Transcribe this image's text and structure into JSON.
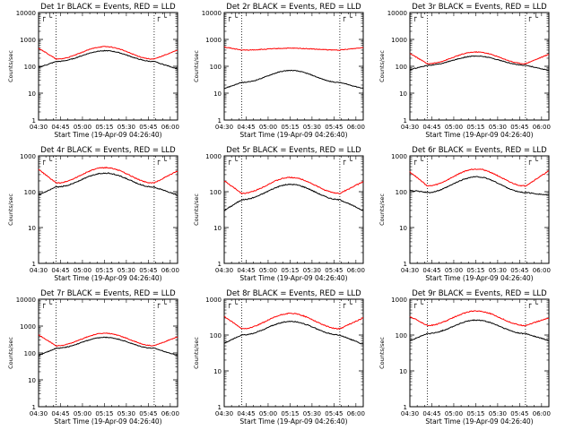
{
  "colors": {
    "events": "#000000",
    "lld": "#ff0000",
    "axis": "#000000",
    "background": "#ffffff"
  },
  "chart_data": [
    {
      "type": "line",
      "title": "Det 1r BLACK = Events, RED = LLD",
      "xlabel": "Start Time (19-Apr-09 04:26:40)",
      "ylabel": "Counts/sec",
      "yscale": "log",
      "ylim": [
        1,
        10000
      ],
      "xlim": [
        "04:30",
        "06:05"
      ],
      "xticks": [
        "04:30",
        "04:45",
        "05:00",
        "05:15",
        "05:30",
        "05:45",
        "06:00"
      ],
      "yticks": [
        "1",
        "10",
        "100",
        "1000",
        "10000"
      ],
      "vlines": [
        "04:42",
        "05:49"
      ],
      "corner_marks": "┌ └",
      "series": [
        {
          "name": "BLACK = Events",
          "color": "#000000",
          "base": 150,
          "peak": 380,
          "pre": 90,
          "post": 80
        },
        {
          "name": "RED = LLD",
          "color": "#ff0000",
          "base": 185,
          "peak": 540,
          "pre": 480,
          "post": 400
        }
      ]
    },
    {
      "type": "line",
      "title": "Det 2r BLACK = Events, RED = LLD",
      "xlabel": "Start Time (19-Apr-09 04:26:40)",
      "ylabel": "Counts/sec",
      "yscale": "log",
      "ylim": [
        1,
        10000
      ],
      "xlim": [
        "04:30",
        "06:05"
      ],
      "xticks": [
        "04:30",
        "04:45",
        "05:00",
        "05:15",
        "05:30",
        "05:45",
        "06:00"
      ],
      "yticks": [
        "1",
        "10",
        "100",
        "1000",
        "10000"
      ],
      "vlines": [
        "04:42",
        "05:49"
      ],
      "corner_marks": "┌ └",
      "series": [
        {
          "name": "BLACK = Events",
          "color": "#000000",
          "base": 25,
          "peak": 70,
          "pre": 15,
          "post": 15
        },
        {
          "name": "RED = LLD",
          "color": "#ff0000",
          "base": 400,
          "peak": 470,
          "pre": 520,
          "post": 500
        }
      ]
    },
    {
      "type": "line",
      "title": "Det 3r BLACK = Events, RED = LLD",
      "xlabel": "Start Time (19-Apr-09 04:26:40)",
      "ylabel": "Counts/sec",
      "yscale": "log",
      "ylim": [
        1,
        10000
      ],
      "xlim": [
        "04:30",
        "06:05"
      ],
      "xticks": [
        "04:30",
        "04:45",
        "05:00",
        "05:15",
        "05:30",
        "05:45",
        "06:00"
      ],
      "yticks": [
        "1",
        "10",
        "100",
        "1000",
        "10000"
      ],
      "vlines": [
        "04:42",
        "05:49"
      ],
      "corner_marks": "┌ └",
      "series": [
        {
          "name": "BLACK = Events",
          "color": "#000000",
          "base": 110,
          "peak": 240,
          "pre": 75,
          "post": 70
        },
        {
          "name": "RED = LLD",
          "color": "#ff0000",
          "base": 125,
          "peak": 340,
          "pre": 300,
          "post": 280
        }
      ]
    },
    {
      "type": "line",
      "title": "Det 4r BLACK = Events, RED = LLD",
      "xlabel": "Start Time (19-Apr-09 04:26:40)",
      "ylabel": "Counts/sec",
      "yscale": "log",
      "ylim": [
        1,
        1000
      ],
      "xlim": [
        "04:30",
        "06:05"
      ],
      "xticks": [
        "04:30",
        "04:45",
        "05:00",
        "05:15",
        "05:30",
        "05:45",
        "06:00"
      ],
      "yticks": [
        "1",
        "10",
        "100",
        "1000"
      ],
      "vlines": [
        "04:42",
        "05:49"
      ],
      "corner_marks": "┌ └",
      "series": [
        {
          "name": "BLACK = Events",
          "color": "#000000",
          "base": 135,
          "peak": 330,
          "pre": 80,
          "post": 80
        },
        {
          "name": "RED = LLD",
          "color": "#ff0000",
          "base": 175,
          "peak": 470,
          "pre": 420,
          "post": 380
        }
      ]
    },
    {
      "type": "line",
      "title": "Det 5r BLACK = Events, RED = LLD",
      "xlabel": "Start Time (19-Apr-09 04:26:40)",
      "ylabel": "Counts/sec",
      "yscale": "log",
      "ylim": [
        1,
        1000
      ],
      "xlim": [
        "04:30",
        "06:05"
      ],
      "xticks": [
        "04:30",
        "04:45",
        "05:00",
        "05:15",
        "05:30",
        "05:45",
        "06:00"
      ],
      "yticks": [
        "1",
        "10",
        "100",
        "1000"
      ],
      "vlines": [
        "04:42",
        "05:49"
      ],
      "corner_marks": "┌ └",
      "series": [
        {
          "name": "BLACK = Events",
          "color": "#000000",
          "base": 60,
          "peak": 160,
          "pre": 30,
          "post": 30
        },
        {
          "name": "RED = LLD",
          "color": "#ff0000",
          "base": 90,
          "peak": 250,
          "pre": 200,
          "post": 190
        }
      ]
    },
    {
      "type": "line",
      "title": "Det 6r BLACK = Events, RED = LLD",
      "xlabel": "Start Time (19-Apr-09 04:26:40)",
      "ylabel": "Counts/sec",
      "yscale": "log",
      "ylim": [
        1,
        1000
      ],
      "xlim": [
        "04:30",
        "06:05"
      ],
      "xticks": [
        "04:30",
        "04:45",
        "05:00",
        "05:15",
        "05:30",
        "05:45",
        "06:00"
      ],
      "yticks": [
        "1",
        "10",
        "100",
        "1000"
      ],
      "vlines": [
        "04:42",
        "05:49"
      ],
      "corner_marks": "┌ └",
      "series": [
        {
          "name": "BLACK = Events",
          "color": "#000000",
          "base": 95,
          "peak": 260,
          "pre": 110,
          "post": 80
        },
        {
          "name": "RED = LLD",
          "color": "#ff0000",
          "base": 145,
          "peak": 430,
          "pre": 360,
          "post": 380
        }
      ]
    },
    {
      "type": "line",
      "title": "Det 7r BLACK = Events, RED = LLD",
      "xlabel": "Start Time (19-Apr-09 04:26:40)",
      "ylabel": "Counts/sec",
      "yscale": "log",
      "ylim": [
        1,
        10000
      ],
      "xlim": [
        "04:30",
        "06:05"
      ],
      "xticks": [
        "04:30",
        "04:45",
        "05:00",
        "05:15",
        "05:30",
        "05:45",
        "06:00"
      ],
      "yticks": [
        "1",
        "10",
        "100",
        "1000",
        "10000"
      ],
      "vlines": [
        "04:42",
        "05:49"
      ],
      "corner_marks": "┌ └",
      "series": [
        {
          "name": "BLACK = Events",
          "color": "#000000",
          "base": 150,
          "peak": 380,
          "pre": 80,
          "post": 80
        },
        {
          "name": "RED = LLD",
          "color": "#ff0000",
          "base": 185,
          "peak": 540,
          "pre": 470,
          "post": 400
        }
      ]
    },
    {
      "type": "line",
      "title": "Det 8r BLACK = Events, RED = LLD",
      "xlabel": "Start Time (19-Apr-09 04:26:40)",
      "ylabel": "Counts/sec",
      "yscale": "log",
      "ylim": [
        1,
        1000
      ],
      "xlim": [
        "04:30",
        "06:05"
      ],
      "xticks": [
        "04:30",
        "04:45",
        "05:00",
        "05:15",
        "05:30",
        "05:45",
        "06:00"
      ],
      "yticks": [
        "1",
        "10",
        "100",
        "1000"
      ],
      "vlines": [
        "04:42",
        "05:49"
      ],
      "corner_marks": "┌ └",
      "series": [
        {
          "name": "BLACK = Events",
          "color": "#000000",
          "base": 100,
          "peak": 240,
          "pre": 60,
          "post": 55
        },
        {
          "name": "RED = LLD",
          "color": "#ff0000",
          "base": 150,
          "peak": 400,
          "pre": 330,
          "post": 300
        }
      ]
    },
    {
      "type": "line",
      "title": "Det 9r BLACK = Events, RED = LLD",
      "xlabel": "Start Time (19-Apr-09 04:26:40)",
      "ylabel": "Counts/sec",
      "yscale": "log",
      "ylim": [
        1,
        1000
      ],
      "xlim": [
        "04:30",
        "06:05"
      ],
      "xticks": [
        "04:30",
        "04:45",
        "05:00",
        "05:15",
        "05:30",
        "05:45",
        "06:00"
      ],
      "yticks": [
        "1",
        "10",
        "100",
        "1000"
      ],
      "vlines": [
        "04:42",
        "05:49"
      ],
      "corner_marks": "┌ └",
      "series": [
        {
          "name": "BLACK = Events",
          "color": "#000000",
          "base": 110,
          "peak": 260,
          "pre": 70,
          "post": 70
        },
        {
          "name": "RED = LLD",
          "color": "#ff0000",
          "base": 185,
          "peak": 470,
          "pre": 330,
          "post": 300
        }
      ]
    }
  ]
}
